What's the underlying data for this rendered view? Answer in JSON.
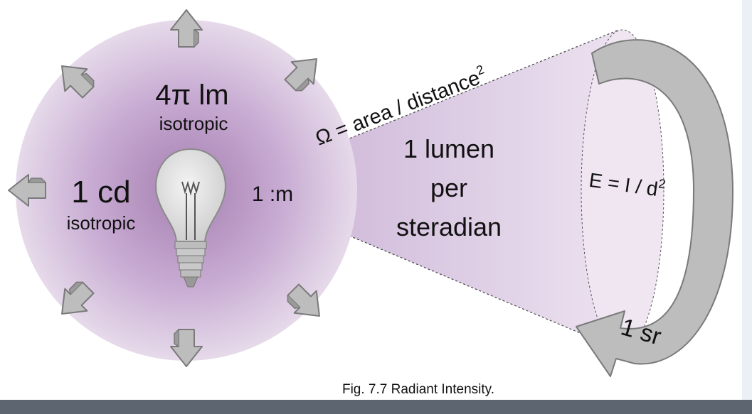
{
  "figure": {
    "sphere_lumens": "4π lm",
    "sphere_lumens_sub": "isotropic",
    "candela": "1 cd",
    "candela_sub": "isotropic",
    "source_label": "1 :m",
    "solid_angle_formula": "Ω = area / distance",
    "solid_angle_exponent": "2",
    "cone_line1": "1 lumen",
    "cone_line2": "per",
    "cone_line3": "steradian",
    "illuminance_formula": "E = I / d",
    "illuminance_exponent": "2",
    "steradian_label": "1 sr",
    "caption": "Fig. 7.7  Radiant Intensity."
  },
  "colors": {
    "sphere_center": "#a57fb0",
    "sphere_edge": "#e1d3e6",
    "cone": "#d4c1dc",
    "arrow_fill": "#bdbdbd",
    "arrow_stroke": "#7a7a7a",
    "bottom_bar": "#5d6670"
  },
  "icons": [
    "light-bulb-icon",
    "outward-arrow-icon",
    "circular-arrow-icon"
  ]
}
